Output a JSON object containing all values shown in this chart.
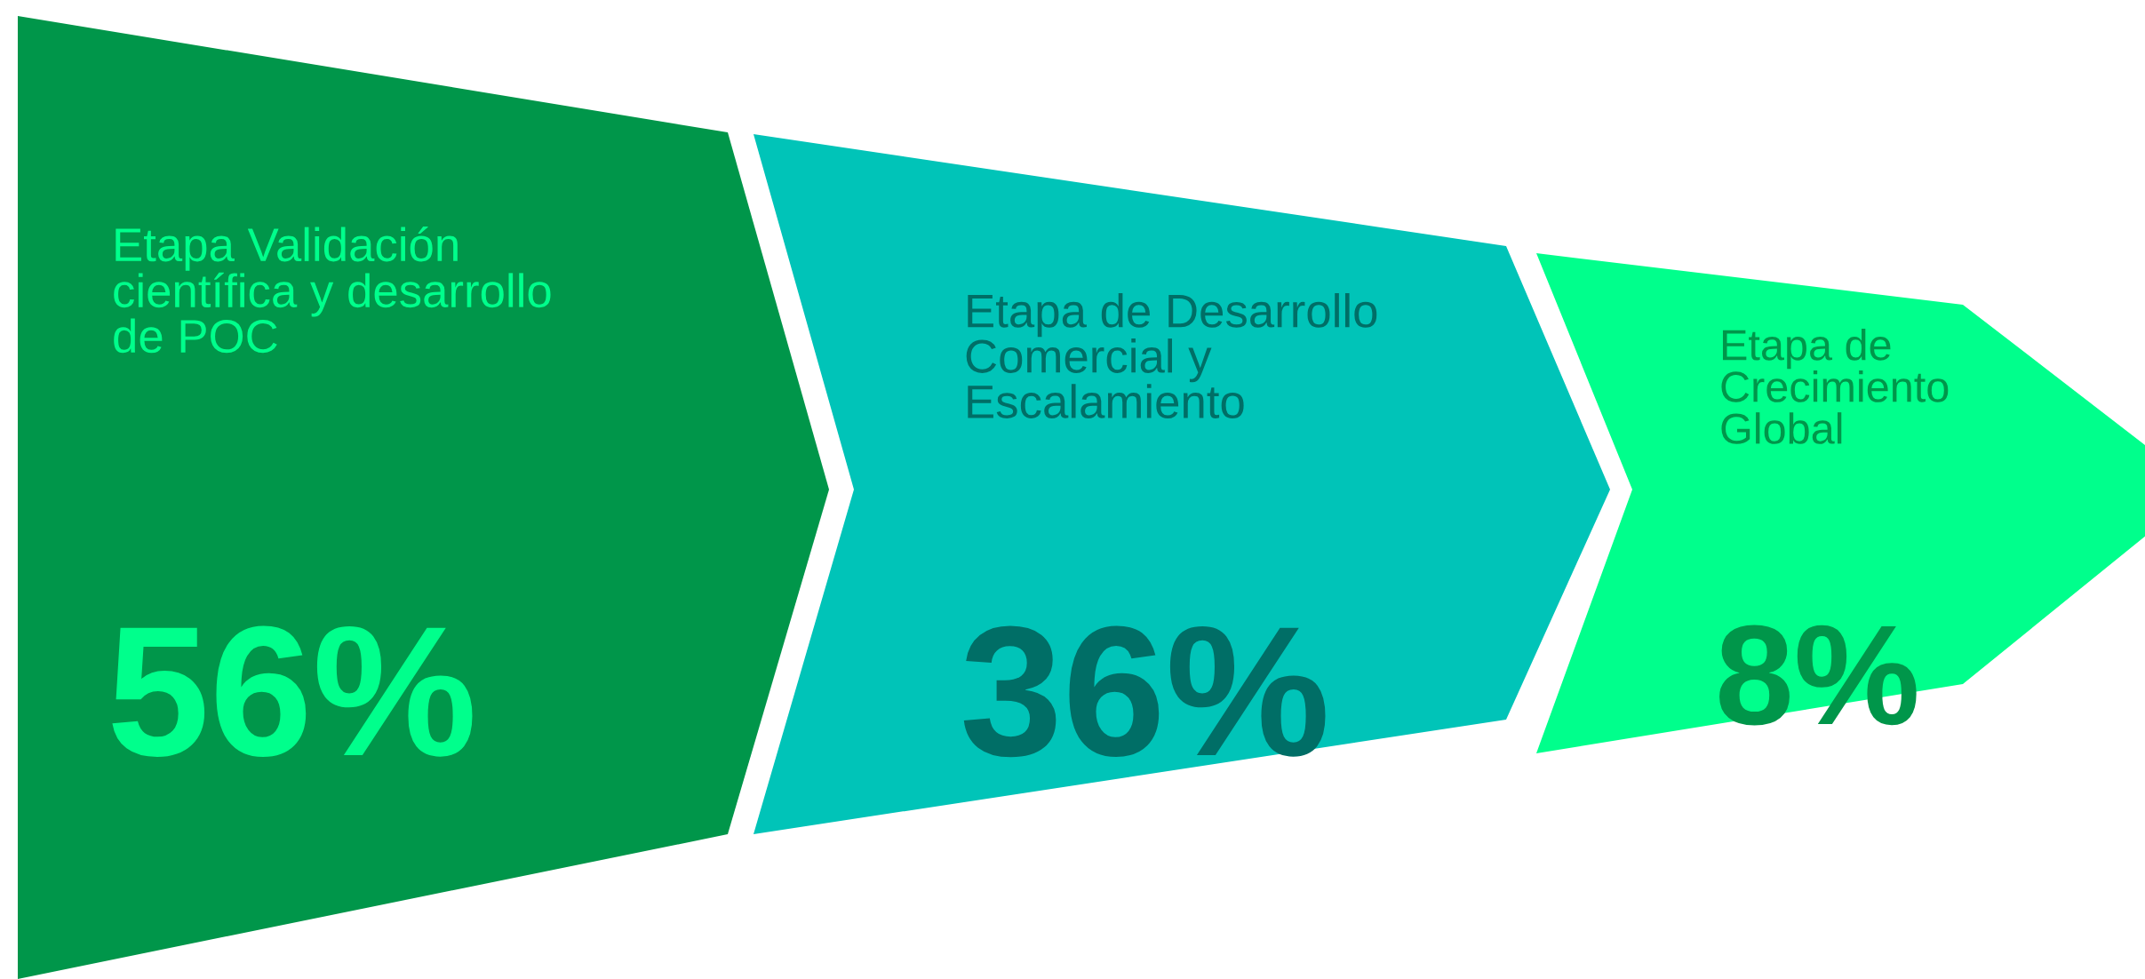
{
  "chart_data": {
    "type": "other",
    "categories": [
      "Etapa Validación\ncientífica y desarrollo\nde POC",
      "Etapa de Desarrollo\nComercial y\nEscalamiento",
      "Etapa de\nCrecimiento\nGlobal"
    ],
    "values": [
      56,
      36,
      8
    ],
    "value_labels": [
      "56%",
      "36%",
      "8%"
    ],
    "colors": [
      "#00964a",
      "#00c4b8",
      "#00ff8c"
    ]
  }
}
